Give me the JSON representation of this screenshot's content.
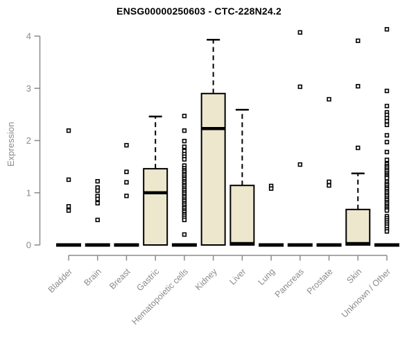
{
  "chart_data": {
    "type": "boxplot",
    "title": "ENSG00000250603 - CTC-228N24.2",
    "ylabel": "Expression",
    "ylim": [
      0,
      4
    ],
    "yticks": [
      0,
      1,
      2,
      3,
      4
    ],
    "grid": false,
    "legend": "none",
    "colors": {
      "box_fill": "#EDE7CE",
      "axis": "#8B8B8B",
      "ink": "#000000"
    },
    "boxes": [
      {
        "category": "Bladder",
        "q1": 0,
        "median": 0,
        "q3": 0,
        "whisker_high": 0,
        "outliers": [
          2.19,
          1.25,
          0.74,
          0.66
        ]
      },
      {
        "category": "Brain",
        "q1": 0,
        "median": 0,
        "q3": 0,
        "whisker_high": 0,
        "outliers": [
          1.22,
          1.1,
          1.04,
          0.94,
          0.88,
          0.8,
          0.48
        ]
      },
      {
        "category": "Breast",
        "q1": 0,
        "median": 0,
        "q3": 0,
        "whisker_high": 0,
        "outliers": [
          1.91,
          1.4,
          1.2,
          0.94
        ]
      },
      {
        "category": "Gastric",
        "q1": 0,
        "median": 1.0,
        "q3": 1.46,
        "whisker_high": 2.46,
        "outliers": []
      },
      {
        "category": "Hematopoietic cells",
        "q1": 0,
        "median": 0,
        "q3": 0,
        "whisker_high": 0,
        "outliers": [
          2.47,
          2.19,
          1.99,
          1.88,
          1.8,
          1.74,
          1.69,
          1.64,
          1.52,
          1.47,
          1.43,
          1.4,
          1.36,
          1.33,
          1.29,
          1.26,
          1.22,
          1.19,
          1.15,
          1.12,
          1.08,
          1.05,
          1.01,
          0.98,
          0.94,
          0.91,
          0.87,
          0.84,
          0.8,
          0.77,
          0.73,
          0.7,
          0.66,
          0.63,
          0.59,
          0.56,
          0.52,
          0.48,
          0.2
        ]
      },
      {
        "category": "Kidney",
        "q1": 0,
        "median": 2.23,
        "q3": 2.9,
        "whisker_high": 3.93,
        "outliers": []
      },
      {
        "category": "Liver",
        "q1": 0,
        "median": 0,
        "q3": 1.14,
        "whisker_high": 2.59,
        "outliers": []
      },
      {
        "category": "Lung",
        "q1": 0,
        "median": 0,
        "q3": 0,
        "whisker_high": 0,
        "outliers": [
          1.13,
          1.08
        ]
      },
      {
        "category": "Pancreas",
        "q1": 0,
        "median": 0,
        "q3": 0,
        "whisker_high": 0,
        "outliers": [
          4.07,
          3.03,
          1.54
        ]
      },
      {
        "category": "Prostate",
        "q1": 0,
        "median": 0,
        "q3": 0,
        "whisker_high": 0,
        "outliers": [
          2.79,
          1.21,
          1.14
        ]
      },
      {
        "category": "Skin",
        "q1": 0,
        "median": 0,
        "q3": 0.68,
        "whisker_high": 1.37,
        "outliers": [
          3.91,
          3.04,
          1.86
        ]
      },
      {
        "category": "Unknown / Other",
        "q1": 0,
        "median": 0,
        "q3": 0,
        "whisker_high": 0,
        "outliers": [
          4.13,
          2.95,
          2.66,
          2.54,
          2.49,
          2.43,
          2.37,
          2.3,
          2.1,
          1.97,
          1.78,
          1.63,
          1.55,
          1.51,
          1.48,
          1.44,
          1.41,
          1.37,
          1.34,
          1.31,
          1.28,
          1.21,
          1.17,
          1.14,
          1.1,
          1.07,
          1.03,
          1.0,
          0.96,
          0.93,
          0.89,
          0.86,
          0.82,
          0.79,
          0.75,
          0.72,
          0.69,
          0.66,
          0.55,
          0.51,
          0.47,
          0.43,
          0.39,
          0.35,
          0.3,
          0.26
        ]
      }
    ]
  }
}
